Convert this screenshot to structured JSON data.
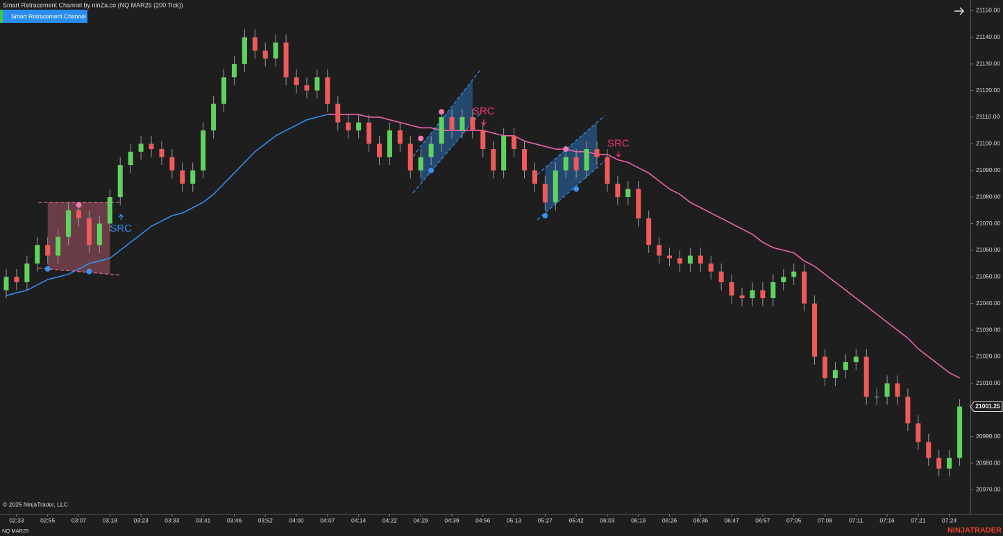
{
  "chart_data": {
    "type": "candlestick",
    "title": "Smart Retracement Channel by ninZa.co (NQ MAR25 (200 Tick))",
    "indicator_button": "Smart Retracement Channel",
    "copyright": "© 2025 NinjaTrader, LLC",
    "instrument": "NQ MAR25",
    "brand": "NINJATRADER",
    "up_color": "#5fd35f",
    "down_color": "#ef5a5a",
    "categories": [
      null,
      "02:33",
      null,
      null,
      "02:55",
      null,
      null,
      "03:07",
      null,
      null,
      "03:18",
      null,
      null,
      "03:23",
      null,
      null,
      "03:33",
      null,
      null,
      "03:41",
      null,
      null,
      "03:46",
      null,
      null,
      "03:52",
      null,
      null,
      "04:00",
      null,
      null,
      "04:07",
      null,
      null,
      "04:14",
      null,
      null,
      "04:22",
      null,
      null,
      "04:29",
      null,
      null,
      "04:39",
      null,
      null,
      "04:56",
      null,
      null,
      "05:13",
      null,
      null,
      "05:27",
      null,
      null,
      "05:42",
      null,
      null,
      "06:03",
      null,
      null,
      "06:19",
      null,
      null,
      "06:26",
      null,
      null,
      "06:36",
      null,
      null,
      "06:47",
      null,
      null,
      "06:57",
      null,
      null,
      "07:05",
      null,
      null,
      "07:08",
      null,
      null,
      "07:11",
      null,
      null,
      "07:16",
      null,
      null,
      "07:21",
      null,
      null,
      "07:24",
      null
    ],
    "open": [
      21045,
      21050,
      21048,
      21055,
      21062,
      21058,
      21065,
      21075,
      21072,
      21062,
      21070,
      21080,
      21092,
      21097,
      21100,
      21098,
      21095,
      21090,
      21085,
      21090,
      21105,
      21115,
      21125,
      21130,
      21140,
      21135,
      21132,
      21138,
      21125,
      21122,
      21120,
      21125,
      21115,
      21108,
      21105,
      21108,
      21100,
      21095,
      21105,
      21100,
      21090,
      21095,
      21100,
      21110,
      21105,
      21110,
      21105,
      21098,
      21090,
      21103,
      21098,
      21090,
      21085,
      21078,
      21090,
      21095,
      21090,
      21098,
      21095,
      21085,
      21080,
      21083,
      21072,
      21062,
      21058,
      21057,
      21055,
      21058,
      21055,
      21052,
      21048,
      21043,
      21042,
      21045,
      21042,
      21048,
      21050,
      21052,
      21040,
      21020,
      21012,
      21015,
      21018,
      21020,
      21005,
      21005,
      21010,
      21005,
      20995,
      20988,
      20982,
      20978,
      20982
    ],
    "high": [
      21053,
      21053,
      21058,
      21065,
      21065,
      21068,
      21078,
      21078,
      21075,
      21073,
      21083,
      21095,
      21100,
      21103,
      21103,
      21101,
      21098,
      21093,
      21093,
      21108,
      21118,
      21128,
      21133,
      21143,
      21143,
      21138,
      21141,
      21141,
      21128,
      21125,
      21128,
      21128,
      21118,
      21111,
      21111,
      21111,
      21103,
      21108,
      21108,
      21103,
      21098,
      21103,
      21113,
      21113,
      21113,
      21113,
      21108,
      21101,
      21106,
      21106,
      21101,
      21093,
      21088,
      21093,
      21098,
      21098,
      21101,
      21101,
      21098,
      21088,
      21086,
      21086,
      21075,
      21065,
      21061,
      21060,
      21061,
      21061,
      21058,
      21055,
      21051,
      21046,
      21048,
      21048,
      21051,
      21053,
      21055,
      21055,
      21043,
      21023,
      21018,
      21021,
      21023,
      21023,
      21008,
      21013,
      21013,
      21008,
      20998,
      20991,
      20985,
      20985,
      21004
    ],
    "low": [
      21042,
      21045,
      21045,
      21052,
      21055,
      21055,
      21062,
      21069,
      21059,
      21059,
      21067,
      21077,
      21089,
      21094,
      21095,
      21092,
      21087,
      21082,
      21082,
      21087,
      21102,
      21112,
      21122,
      21127,
      21132,
      21129,
      21129,
      21122,
      21119,
      21117,
      21117,
      21112,
      21105,
      21102,
      21102,
      21097,
      21092,
      21092,
      21097,
      21087,
      21087,
      21092,
      21097,
      21102,
      21102,
      21102,
      21095,
      21087,
      21087,
      21095,
      21087,
      21082,
      21075,
      21075,
      21087,
      21087,
      21087,
      21092,
      21082,
      21077,
      21077,
      21069,
      21059,
      21055,
      21054,
      21052,
      21052,
      21052,
      21049,
      21045,
      21040,
      21039,
      21039,
      21039,
      21039,
      21045,
      21047,
      21037,
      21017,
      21009,
      21009,
      21012,
      21015,
      21002,
      21002,
      21002,
      21002,
      20992,
      20985,
      20979,
      20975,
      20975,
      20979
    ],
    "close": [
      21050,
      21048,
      21055,
      21062,
      21058,
      21065,
      21075,
      21072,
      21062,
      21070,
      21080,
      21092,
      21097,
      21100,
      21098,
      21095,
      21090,
      21085,
      21090,
      21105,
      21115,
      21125,
      21130,
      21140,
      21135,
      21132,
      21138,
      21125,
      21122,
      21120,
      21125,
      21115,
      21108,
      21105,
      21108,
      21100,
      21095,
      21105,
      21100,
      21090,
      21095,
      21100,
      21110,
      21105,
      21110,
      21105,
      21098,
      21090,
      21103,
      21098,
      21090,
      21085,
      21078,
      21090,
      21095,
      21090,
      21098,
      21095,
      21085,
      21080,
      21083,
      21072,
      21062,
      21058,
      21057,
      21055,
      21058,
      21055,
      21052,
      21048,
      21043,
      21042,
      21045,
      21042,
      21048,
      21050,
      21052,
      21040,
      21020,
      21012,
      21015,
      21018,
      21020,
      21005,
      21005,
      21010,
      21005,
      20995,
      20988,
      20982,
      20978,
      20982,
      21001.25
    ],
    "series": [
      {
        "color": "#2f8ff0",
        "values": [
          21043,
          21044,
          21045,
          21047,
          21049,
          21050,
          21051,
          21053,
          21055,
          21056,
          21057,
          21060,
          21063,
          21066,
          21069,
          21071,
          21073,
          21074,
          21076,
          21078,
          21081,
          21085,
          21089,
          21093,
          21097,
          21100,
          21103,
          21105,
          21107,
          21109,
          21110,
          21111,
          null,
          null,
          null,
          null,
          null,
          null,
          null,
          null,
          null,
          null,
          null,
          null,
          null,
          null,
          null,
          null,
          null,
          null,
          null,
          null,
          null,
          null,
          null,
          null,
          null,
          null,
          null,
          null,
          null,
          null,
          null,
          null,
          null,
          null,
          null,
          null,
          null,
          null,
          null,
          null,
          null,
          null,
          null,
          null,
          null,
          null,
          null,
          null,
          null,
          null,
          null,
          null,
          null,
          null,
          null,
          null,
          null,
          null,
          null,
          null,
          null
        ]
      },
      {
        "color": "#f062b0",
        "values": [
          null,
          null,
          null,
          null,
          null,
          null,
          null,
          null,
          null,
          null,
          null,
          null,
          null,
          null,
          null,
          null,
          null,
          null,
          null,
          null,
          null,
          null,
          null,
          null,
          null,
          null,
          null,
          null,
          null,
          null,
          null,
          21111,
          21111,
          21111,
          21111,
          21110,
          21110,
          21109,
          21108,
          21107,
          21106,
          21106,
          21105,
          21105,
          21105,
          21105,
          21105,
          21104,
          21103,
          21103,
          21101,
          21100,
          21099,
          21098,
          21098,
          21097,
          21097,
          21096,
          21096,
          21094,
          21093,
          21091,
          21089,
          21086,
          21083,
          21081,
          21078,
          21076,
          21074,
          21072,
          21070,
          21068,
          21066,
          21063,
          21061,
          21060,
          21059,
          21056,
          21054,
          21051,
          21048,
          21045,
          21042,
          21039,
          21036,
          21033,
          21030,
          21027,
          21023,
          21020,
          21017,
          21014,
          21012
        ]
      }
    ],
    "channels": [
      {
        "start": 4,
        "end": 10,
        "top": [
          21078,
          21078
        ],
        "bottom": [
          21053,
          21051
        ],
        "color": "#c86478"
      },
      {
        "start": 40,
        "end": 45,
        "top": [
          21099,
          21124
        ],
        "bottom": [
          21085,
          21108
        ],
        "color": "#2f7fd0"
      },
      {
        "start": 52,
        "end": 57,
        "top": [
          21091,
          21108
        ],
        "bottom": [
          21074,
          21091
        ],
        "color": "#2f7fd0"
      }
    ],
    "pivots": [
      {
        "index": 7,
        "value": 21077,
        "color": "#f07ab0"
      },
      {
        "index": 4,
        "value": 21053,
        "color": "#3a90f0"
      },
      {
        "index": 8,
        "value": 21052,
        "color": "#3a90f0"
      },
      {
        "index": 40,
        "value": 21102,
        "color": "#f07ab0"
      },
      {
        "index": 41,
        "value": 21090,
        "color": "#3a90f0"
      },
      {
        "index": 42,
        "value": 21112,
        "color": "#f07ab0"
      },
      {
        "index": 54,
        "value": 21098,
        "color": "#f07ab0"
      },
      {
        "index": 52,
        "value": 21073,
        "color": "#3a90f0"
      },
      {
        "index": 55,
        "value": 21083,
        "color": "#3a90f0"
      }
    ],
    "annotations": [
      {
        "text": "SRC",
        "index": 10,
        "value": 21068,
        "color": "#2f8ff0",
        "direction": "up"
      },
      {
        "text": "SRC",
        "index": 45,
        "value": 21112,
        "color": "#f0307a",
        "direction": "down"
      },
      {
        "text": "SRC",
        "index": 58,
        "value": 21100,
        "color": "#f0307a",
        "direction": "down"
      }
    ],
    "ylim": [
      20961,
      21154
    ],
    "yticks": [
      {
        "value": 20970,
        "label": "20970.00"
      },
      {
        "value": 20980,
        "label": "20980.00"
      },
      {
        "value": 20990,
        "label": "20990.00"
      },
      {
        "value": 21000,
        "label": "21000.00"
      },
      {
        "value": 21010,
        "label": "21010.00"
      },
      {
        "value": 21020,
        "label": "21020.00"
      },
      {
        "value": 21030,
        "label": "21030.00"
      },
      {
        "value": 21040,
        "label": "21040.00"
      },
      {
        "value": 21050,
        "label": "21050.00"
      },
      {
        "value": 21060,
        "label": "21060.00"
      },
      {
        "value": 21070,
        "label": "21070.00"
      },
      {
        "value": 21080,
        "label": "21080.00"
      },
      {
        "value": 21090,
        "label": "21090.00"
      },
      {
        "value": 21100,
        "label": "21100.00"
      },
      {
        "value": 21110,
        "label": "21110.00"
      },
      {
        "value": 21120,
        "label": "21120.00"
      },
      {
        "value": 21130,
        "label": "21130.00"
      },
      {
        "value": 21140,
        "label": "21140.00"
      },
      {
        "value": 21150,
        "label": "21150.00"
      }
    ]
  }
}
